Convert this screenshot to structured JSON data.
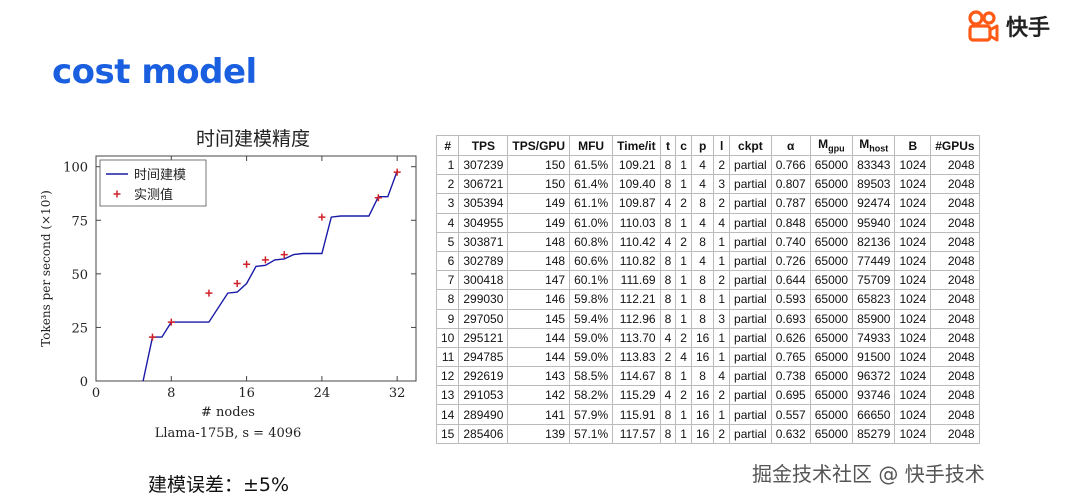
{
  "slide_title": "cost model",
  "brand_name": "快手",
  "watermark": "掘金技术社区 @ 快手技术",
  "caption": "建模误差：±5%",
  "colors": {
    "title": "#1a5fe0",
    "model_line": "#1a1aa8",
    "measured": "#d0202a",
    "brand_orange": "#ff5b16"
  },
  "chart_data": {
    "type": "line",
    "title": "时间建模精度",
    "xlabel": "# nodes",
    "ylabel": "Tokens per second (×10³)",
    "subtitle": "Llama-175B, s = 4096",
    "xlim": [
      0,
      34
    ],
    "ylim": [
      0,
      105
    ],
    "xticks": [
      0,
      8,
      16,
      24,
      32
    ],
    "yticks": [
      0,
      25,
      50,
      75,
      100
    ],
    "legend": {
      "position": "top-left",
      "entries": [
        "时间建模",
        "实测值"
      ]
    },
    "series": [
      {
        "name": "时间建模",
        "kind": "line",
        "x": [
          5,
          6,
          7,
          8,
          12,
          14,
          15,
          16,
          17,
          18,
          19,
          20,
          21,
          22,
          23,
          24,
          25,
          26,
          27,
          28,
          29,
          30,
          31,
          32
        ],
        "y": [
          0,
          20.5,
          20.5,
          27.5,
          27.5,
          41,
          41.5,
          45.5,
          53.5,
          54,
          56.5,
          57,
          59,
          59.5,
          59.5,
          59.5,
          76.5,
          77,
          77,
          77,
          77,
          86,
          86,
          98
        ]
      },
      {
        "name": "实测值",
        "kind": "scatter",
        "x": [
          6,
          8,
          12,
          15,
          16,
          18,
          20,
          24,
          30,
          32
        ],
        "y": [
          20.5,
          27.5,
          41,
          45.5,
          54.5,
          56.5,
          59,
          76.5,
          85.5,
          97.5
        ]
      }
    ]
  },
  "table": {
    "headers": [
      "#",
      "TPS",
      "TPS/GPU",
      "MFU",
      "Time/it",
      "t",
      "c",
      "p",
      "l",
      "ckpt",
      "α",
      "M_gpu",
      "M_host",
      "B",
      "#GPUs"
    ],
    "rows": [
      [
        "1",
        "307239",
        "150",
        "61.5%",
        "109.21",
        "8",
        "1",
        "4",
        "2",
        "partial",
        "0.766",
        "65000",
        "83343",
        "1024",
        "2048"
      ],
      [
        "2",
        "306721",
        "150",
        "61.4%",
        "109.40",
        "8",
        "1",
        "4",
        "3",
        "partial",
        "0.807",
        "65000",
        "89503",
        "1024",
        "2048"
      ],
      [
        "3",
        "305394",
        "149",
        "61.1%",
        "109.87",
        "4",
        "2",
        "8",
        "2",
        "partial",
        "0.787",
        "65000",
        "92474",
        "1024",
        "2048"
      ],
      [
        "4",
        "304955",
        "149",
        "61.0%",
        "110.03",
        "8",
        "1",
        "4",
        "4",
        "partial",
        "0.848",
        "65000",
        "95940",
        "1024",
        "2048"
      ],
      [
        "5",
        "303871",
        "148",
        "60.8%",
        "110.42",
        "4",
        "2",
        "8",
        "1",
        "partial",
        "0.740",
        "65000",
        "82136",
        "1024",
        "2048"
      ],
      [
        "6",
        "302789",
        "148",
        "60.6%",
        "110.82",
        "8",
        "1",
        "4",
        "1",
        "partial",
        "0.726",
        "65000",
        "77449",
        "1024",
        "2048"
      ],
      [
        "7",
        "300418",
        "147",
        "60.1%",
        "111.69",
        "8",
        "1",
        "8",
        "2",
        "partial",
        "0.644",
        "65000",
        "75709",
        "1024",
        "2048"
      ],
      [
        "8",
        "299030",
        "146",
        "59.8%",
        "112.21",
        "8",
        "1",
        "8",
        "1",
        "partial",
        "0.593",
        "65000",
        "65823",
        "1024",
        "2048"
      ],
      [
        "9",
        "297050",
        "145",
        "59.4%",
        "112.96",
        "8",
        "1",
        "8",
        "3",
        "partial",
        "0.693",
        "65000",
        "85900",
        "1024",
        "2048"
      ],
      [
        "10",
        "295121",
        "144",
        "59.0%",
        "113.70",
        "4",
        "2",
        "16",
        "1",
        "partial",
        "0.626",
        "65000",
        "74933",
        "1024",
        "2048"
      ],
      [
        "11",
        "294785",
        "144",
        "59.0%",
        "113.83",
        "2",
        "4",
        "16",
        "1",
        "partial",
        "0.765",
        "65000",
        "91500",
        "1024",
        "2048"
      ],
      [
        "12",
        "292619",
        "143",
        "58.5%",
        "114.67",
        "8",
        "1",
        "8",
        "4",
        "partial",
        "0.738",
        "65000",
        "96372",
        "1024",
        "2048"
      ],
      [
        "13",
        "291053",
        "142",
        "58.2%",
        "115.29",
        "4",
        "2",
        "16",
        "2",
        "partial",
        "0.695",
        "65000",
        "93746",
        "1024",
        "2048"
      ],
      [
        "14",
        "289490",
        "141",
        "57.9%",
        "115.91",
        "8",
        "1",
        "16",
        "1",
        "partial",
        "0.557",
        "65000",
        "66650",
        "1024",
        "2048"
      ],
      [
        "15",
        "285406",
        "139",
        "57.1%",
        "117.57",
        "8",
        "1",
        "16",
        "2",
        "partial",
        "0.632",
        "65000",
        "85279",
        "1024",
        "2048"
      ]
    ]
  }
}
